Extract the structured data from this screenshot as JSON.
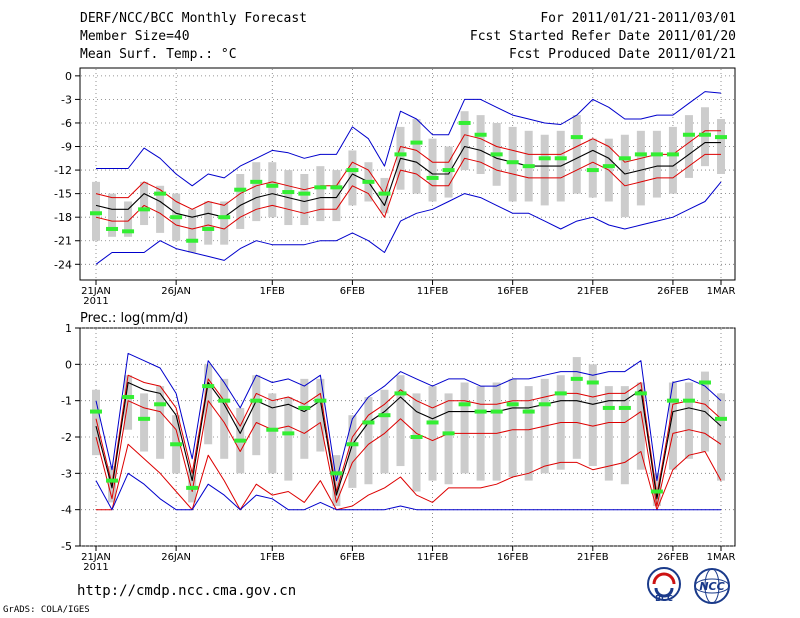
{
  "header": {
    "title": "DERF/NCC/BCC Monthly Forecast",
    "member": "Member Size=40",
    "variable": "Mean Surf. Temp.: °C",
    "period": "For 2011/01/21-2011/03/01",
    "refer": "Fcst Started Refer Date 2011/01/20",
    "produced": "Fcst Produced Date 2011/01/21"
  },
  "footer": {
    "url": "http://cmdp.ncc.cma.gov.cn",
    "grads": "GrADS: COLA/IGES",
    "bcc_logo_text": "BCC",
    "ncc_logo_text": "NCC"
  },
  "colors": {
    "max_min": "#0000cc",
    "ensemble_mean": "#000000",
    "spread": "#dd0000",
    "median_bar": "#33ee33",
    "box": "#cccccc"
  },
  "chart_data": [
    {
      "type": "line",
      "panel": "temperature",
      "title": "Mean Surf. Temp.: °C",
      "x_tick_labels": [
        "21JAN",
        "26JAN",
        "1FEB",
        "6FEB",
        "11FEB",
        "16FEB",
        "21FEB",
        "26FEB",
        "1MAR"
      ],
      "x_tick_days": [
        0,
        5,
        11,
        16,
        21,
        26,
        31,
        36,
        39
      ],
      "x_year_label": "2011",
      "ylim": [
        -26,
        1
      ],
      "y_ticks": [
        0,
        -3,
        -6,
        -9,
        -12,
        -15,
        -18,
        -21,
        -24
      ],
      "days": [
        0,
        1,
        2,
        3,
        4,
        5,
        6,
        7,
        8,
        9,
        10,
        11,
        12,
        13,
        14,
        15,
        16,
        17,
        18,
        19,
        20,
        21,
        22,
        23,
        24,
        25,
        26,
        27,
        28,
        29,
        30,
        31,
        32,
        33,
        34,
        35,
        36,
        37,
        38,
        39
      ],
      "series": [
        {
          "name": "max",
          "values": [
            -11.8,
            -11.8,
            -11.8,
            -9.2,
            -10.5,
            -12.5,
            -14,
            -12.5,
            -13,
            -11.5,
            -10.5,
            -9.5,
            -9.8,
            -10.5,
            -10,
            -10,
            -6.5,
            -8,
            -11.5,
            -4.5,
            -5.5,
            -7.5,
            -7.5,
            -3,
            -3,
            -4,
            -5,
            -5.5,
            -6,
            -6.2,
            -5,
            -3,
            -4,
            -5.5,
            -5.5,
            -5,
            -5,
            -3.5,
            -2,
            -2.2
          ]
        },
        {
          "name": "upper",
          "values": [
            -15,
            -15.5,
            -15.5,
            -13.5,
            -14.5,
            -16,
            -17,
            -16,
            -16.5,
            -15,
            -14,
            -13.5,
            -14,
            -14.5,
            -14,
            -14,
            -11,
            -12,
            -15,
            -9,
            -9.5,
            -11,
            -11,
            -7.5,
            -8,
            -9,
            -9.5,
            -10,
            -10,
            -10,
            -9,
            -8,
            -9,
            -11,
            -10.5,
            -10,
            -10,
            -8.5,
            -7,
            -7
          ]
        },
        {
          "name": "mean",
          "values": [
            -16.5,
            -17,
            -17,
            -15,
            -16,
            -17.5,
            -18,
            -17.5,
            -18,
            -16.5,
            -15.5,
            -15,
            -15.5,
            -16,
            -15.5,
            -15.5,
            -12.5,
            -13.5,
            -16.5,
            -10.5,
            -11,
            -12.5,
            -12.5,
            -9,
            -9.5,
            -10.5,
            -11,
            -11.5,
            -11.5,
            -11.5,
            -10.5,
            -9.5,
            -10.5,
            -12.5,
            -12,
            -11.5,
            -11.5,
            -10,
            -8.5,
            -8.5
          ]
        },
        {
          "name": "lower",
          "values": [
            -18,
            -18.5,
            -18.5,
            -16.5,
            -17.5,
            -19,
            -19.5,
            -19,
            -19.5,
            -18,
            -17,
            -16.5,
            -17,
            -17.5,
            -17,
            -17,
            -14,
            -15,
            -18,
            -12,
            -12.5,
            -14,
            -14,
            -10.5,
            -11,
            -12,
            -12.5,
            -13,
            -13,
            -13,
            -12,
            -11,
            -12,
            -14,
            -13.5,
            -13,
            -13,
            -11.5,
            -10,
            -10
          ]
        },
        {
          "name": "min",
          "values": [
            -24,
            -22.5,
            -22.5,
            -22.5,
            -21,
            -22,
            -22.5,
            -23,
            -23.5,
            -22,
            -21,
            -21.5,
            -21.5,
            -21.5,
            -21,
            -21,
            -20,
            -21,
            -22.5,
            -18.5,
            -17.5,
            -17,
            -16,
            -15,
            -15.5,
            -16.5,
            -17.5,
            -17.5,
            -18.5,
            -19.5,
            -18.5,
            -18,
            -19,
            -19.5,
            -19,
            -18.5,
            -18,
            -17,
            -16,
            -13.5
          ]
        },
        {
          "name": "median",
          "values": [
            -17.5,
            -19.5,
            -19.8,
            -17,
            -15,
            -18,
            -21,
            -19.5,
            -18,
            -14.5,
            -13.5,
            -14,
            -14.8,
            -15,
            -14.2,
            -14.2,
            -12,
            -13.5,
            -15,
            -10,
            -8.5,
            -13,
            -12,
            -6,
            -7.5,
            -10,
            -11,
            -11.5,
            -10.5,
            -10.5,
            -7.8,
            -12,
            -11.5,
            -10.5,
            -10,
            -10,
            -10,
            -7.5,
            -7.5,
            -7.8
          ]
        },
        {
          "name": "box_top",
          "values": [
            -13.5,
            -15,
            -16,
            -13.5,
            -14,
            -15,
            -17,
            -16,
            -16,
            -12.5,
            -11,
            -11,
            -12,
            -12.5,
            -11.5,
            -12,
            -9.5,
            -11,
            -13,
            -6.5,
            -5.5,
            -8,
            -9,
            -4.5,
            -5,
            -6,
            -6.5,
            -7,
            -7.5,
            -7,
            -5,
            -8,
            -8,
            -7.5,
            -7,
            -7,
            -6.5,
            -5,
            -4,
            -5.5
          ]
        },
        {
          "name": "box_bottom",
          "values": [
            -21,
            -20.5,
            -20.5,
            -19,
            -20,
            -21,
            -22.5,
            -21.5,
            -21.5,
            -19.5,
            -18.5,
            -18,
            -19,
            -19,
            -18.5,
            -18.5,
            -16.5,
            -16,
            -17.5,
            -14.5,
            -15,
            -16,
            -15.5,
            -12,
            -12.5,
            -14,
            -16,
            -16,
            -16.5,
            -16,
            -15,
            -15.5,
            -16,
            -18,
            -16.5,
            -15.5,
            -15,
            -13,
            -11.5,
            -12.5
          ]
        }
      ]
    },
    {
      "type": "line",
      "panel": "precipitation",
      "title": "Prec.: log(mm/d)",
      "x_tick_labels": [
        "21JAN",
        "26JAN",
        "1FEB",
        "6FEB",
        "11FEB",
        "16FEB",
        "21FEB",
        "26FEB",
        "1MAR"
      ],
      "x_tick_days": [
        0,
        5,
        11,
        16,
        21,
        26,
        31,
        36,
        39
      ],
      "x_year_label": "2011",
      "ylim": [
        -5,
        1
      ],
      "y_ticks": [
        1,
        0,
        -1,
        -2,
        -3,
        -4,
        -5
      ],
      "days": [
        0,
        1,
        2,
        3,
        4,
        5,
        6,
        7,
        8,
        9,
        10,
        11,
        12,
        13,
        14,
        15,
        16,
        17,
        18,
        19,
        20,
        21,
        22,
        23,
        24,
        25,
        26,
        27,
        28,
        29,
        30,
        31,
        32,
        33,
        34,
        35,
        36,
        37,
        38,
        39
      ],
      "series": [
        {
          "name": "max",
          "values": [
            -1,
            -2.9,
            0.3,
            0.1,
            -0.1,
            -0.8,
            -2.6,
            0.1,
            -0.5,
            -1.2,
            -0.3,
            -0.5,
            -0.4,
            -0.6,
            -0.3,
            -3.2,
            -1.5,
            -0.9,
            -0.6,
            -0.2,
            -0.4,
            -0.6,
            -0.4,
            -0.4,
            -0.6,
            -0.6,
            -0.4,
            -0.4,
            -0.3,
            -0.2,
            -0.2,
            -0.3,
            -0.2,
            -0.2,
            0.1,
            -3.2,
            -0.5,
            -0.4,
            -0.6,
            -1
          ]
        },
        {
          "name": "upper",
          "values": [
            -1.5,
            -3.3,
            -0.3,
            -0.5,
            -0.6,
            -1.2,
            -3,
            -0.4,
            -1,
            -1.7,
            -0.8,
            -1,
            -0.9,
            -1.1,
            -0.8,
            -3.5,
            -2,
            -1.4,
            -1.1,
            -0.7,
            -1,
            -1.2,
            -1,
            -1,
            -1.1,
            -1.1,
            -1,
            -1,
            -0.9,
            -0.8,
            -0.8,
            -0.9,
            -0.8,
            -0.8,
            -0.5,
            -3.6,
            -1.1,
            -1,
            -1.1,
            -1.5
          ]
        },
        {
          "name": "mean",
          "values": [
            -1.7,
            -3.4,
            -0.5,
            -0.7,
            -0.8,
            -1.4,
            -3.2,
            -0.5,
            -1.1,
            -1.9,
            -1,
            -1.2,
            -1.1,
            -1.3,
            -1,
            -3.6,
            -2.2,
            -1.6,
            -1.3,
            -0.9,
            -1.3,
            -1.5,
            -1.3,
            -1.3,
            -1.3,
            -1.3,
            -1.2,
            -1.2,
            -1.1,
            -1,
            -1,
            -1.1,
            -1,
            -1,
            -0.7,
            -3.7,
            -1.3,
            -1.2,
            -1.3,
            -1.7
          ]
        },
        {
          "name": "lower",
          "values": [
            -2,
            -3.7,
            -1,
            -1.2,
            -1.3,
            -1.8,
            -3.5,
            -1,
            -1.6,
            -2.4,
            -1.6,
            -1.8,
            -1.7,
            -1.9,
            -1.6,
            -3.8,
            -2.7,
            -2.2,
            -1.9,
            -1.5,
            -1.9,
            -2.1,
            -1.9,
            -1.9,
            -1.9,
            -1.9,
            -1.8,
            -1.8,
            -1.7,
            -1.6,
            -1.6,
            -1.7,
            -1.6,
            -1.6,
            -1.3,
            -3.9,
            -1.9,
            -1.8,
            -1.9,
            -2.2
          ]
        },
        {
          "name": "min",
          "values": [
            -4,
            -4,
            -2.2,
            -2.6,
            -3,
            -3.5,
            -4,
            -2.5,
            -3.2,
            -4,
            -3.3,
            -3.6,
            -3.5,
            -3.8,
            -3.2,
            -4,
            -3.9,
            -3.6,
            -3.4,
            -3.1,
            -3.6,
            -3.8,
            -3.4,
            -3.4,
            -3.4,
            -3.3,
            -3.1,
            -3,
            -2.8,
            -2.7,
            -2.7,
            -2.9,
            -2.8,
            -2.7,
            -2.4,
            -4,
            -2.9,
            -2.5,
            -2.4,
            -3.2
          ]
        },
        {
          "name": "min_blue",
          "values": [
            -3.2,
            -4,
            -3,
            -3.3,
            -3.7,
            -4,
            -4,
            -3.3,
            -3.6,
            -4,
            -3.6,
            -3.7,
            -4,
            -4,
            -3.8,
            -4,
            -4,
            -4,
            -4,
            -3.9,
            -4,
            -4,
            -4,
            -4,
            -4,
            -4,
            -4,
            -4,
            -4,
            -4,
            -4,
            -4,
            -4,
            -4,
            -4,
            -4,
            -4,
            -4,
            -4,
            -4
          ]
        },
        {
          "name": "median",
          "values": [
            -1.3,
            -3.2,
            -0.9,
            -1.5,
            -1.1,
            -2.2,
            -3.4,
            -0.6,
            -1,
            -2.1,
            -1,
            -1.8,
            -1.9,
            -1.2,
            -1,
            -3,
            -2.2,
            -1.6,
            -1.4,
            -0.8,
            -2,
            -1.6,
            -1.9,
            -1.1,
            -1.3,
            -1.3,
            -1.1,
            -1.3,
            -1.1,
            -0.8,
            -0.4,
            -0.5,
            -1.2,
            -1.2,
            -0.8,
            -3.5,
            -1,
            -1,
            -0.5,
            -1.5
          ]
        },
        {
          "name": "box_top",
          "values": [
            -0.7,
            -2.8,
            -0.3,
            -0.8,
            -0.6,
            -1.4,
            -2.9,
            0,
            -0.4,
            -1.2,
            -0.3,
            -0.8,
            -0.9,
            -0.4,
            -0.4,
            -2.5,
            -1.4,
            -0.9,
            -0.7,
            -0.3,
            -0.8,
            -0.6,
            -0.8,
            -0.5,
            -0.6,
            -0.5,
            -0.4,
            -0.6,
            -0.4,
            -0.3,
            0.2,
            0,
            -0.6,
            -0.6,
            -0.5,
            -3,
            -0.5,
            -0.5,
            -0.2,
            -0.8
          ]
        },
        {
          "name": "box_bottom",
          "values": [
            -2.5,
            -3.8,
            -1.8,
            -2.4,
            -2.6,
            -3,
            -3.8,
            -2.2,
            -2.6,
            -3,
            -2.5,
            -3,
            -3.2,
            -2.6,
            -2.4,
            -3.9,
            -3.4,
            -3.3,
            -3,
            -2.8,
            -3.5,
            -3.2,
            -3.3,
            -3,
            -3.2,
            -3.2,
            -3.1,
            -3.2,
            -3,
            -2.9,
            -2.6,
            -2.8,
            -3.2,
            -3.3,
            -2.9,
            -3.9,
            -2.9,
            -2.6,
            -2.4,
            -3.2
          ]
        }
      ]
    }
  ]
}
